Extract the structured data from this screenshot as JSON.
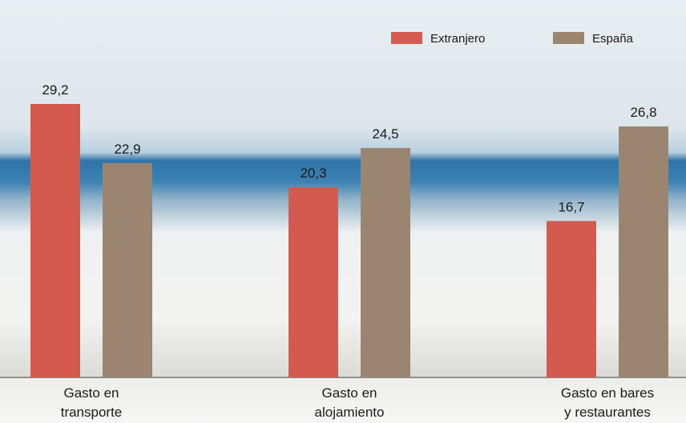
{
  "chart_data": {
    "type": "bar",
    "categories": [
      "Gasto en\ntransporte",
      "Gasto en\nalojamiento",
      "Gasto en bares\ny restaurantes"
    ],
    "series": [
      {
        "name": "Extranjero",
        "color": "#d45a50",
        "values": [
          29.2,
          20.3,
          16.7
        ],
        "value_labels": [
          "29,2",
          "20,3",
          "16,7"
        ]
      },
      {
        "name": "España",
        "color": "#9b8571",
        "values": [
          22.9,
          24.5,
          26.8
        ],
        "value_labels": [
          "22,9",
          "24,5",
          "26,8"
        ]
      }
    ],
    "legend": "top-right"
  }
}
